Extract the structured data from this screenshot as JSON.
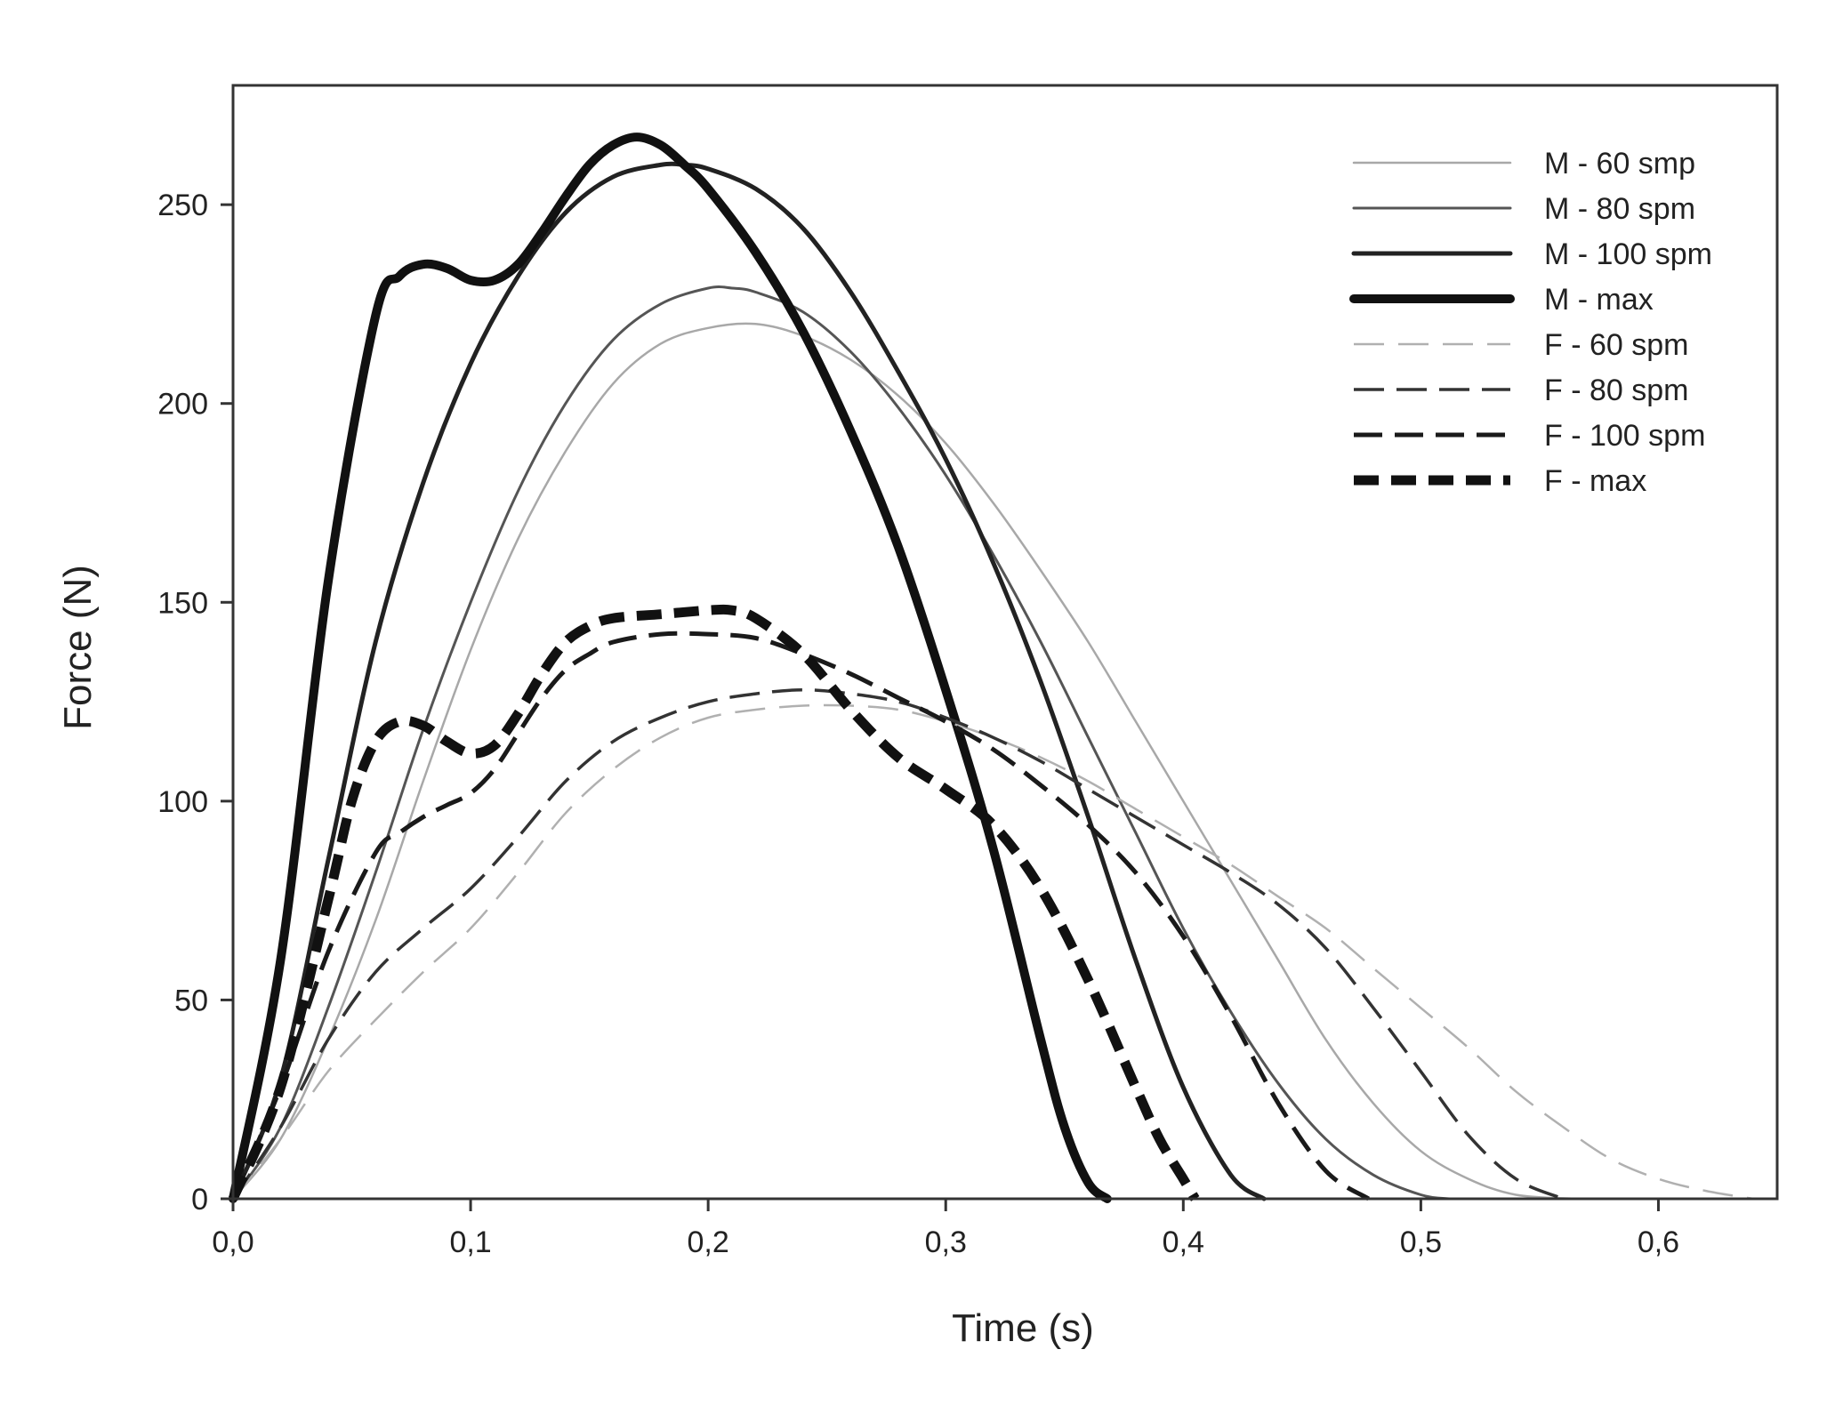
{
  "chart_data": {
    "type": "line",
    "title": "",
    "xlabel": "Time (s)",
    "ylabel": "Force (N)",
    "xlim": [
      0,
      0.65
    ],
    "ylim": [
      0,
      280
    ],
    "xticks": [
      0,
      0.1,
      0.2,
      0.3,
      0.4,
      0.5,
      0.6
    ],
    "xtick_labels": [
      "0,0",
      "0,1",
      "0,2",
      "0,3",
      "0,4",
      "0,5",
      "0,6"
    ],
    "yticks": [
      0,
      50,
      100,
      150,
      200,
      250
    ],
    "ytick_labels": [
      "0",
      "50",
      "100",
      "150",
      "200",
      "250"
    ],
    "grid": false,
    "legend_position": "top-right",
    "series": [
      {
        "name": "M - 60 smp",
        "color": "#a8a8a8",
        "style": "solid-thin",
        "x": [
          0,
          0.02,
          0.04,
          0.06,
          0.08,
          0.1,
          0.12,
          0.14,
          0.16,
          0.18,
          0.2,
          0.22,
          0.24,
          0.26,
          0.28,
          0.3,
          0.32,
          0.34,
          0.36,
          0.38,
          0.4,
          0.42,
          0.44,
          0.46,
          0.48,
          0.5,
          0.52,
          0.54,
          0.565
        ],
        "y": [
          0,
          15,
          40,
          70,
          105,
          138,
          166,
          188,
          205,
          215,
          219,
          220,
          217,
          211,
          202,
          190,
          175,
          158,
          140,
          120,
          100,
          80,
          60,
          40,
          24,
          12,
          5,
          1,
          0
        ]
      },
      {
        "name": "M - 80 spm",
        "color": "#555555",
        "style": "solid-medium",
        "x": [
          0,
          0.02,
          0.04,
          0.06,
          0.08,
          0.1,
          0.12,
          0.14,
          0.16,
          0.18,
          0.2,
          0.21,
          0.22,
          0.24,
          0.26,
          0.28,
          0.3,
          0.32,
          0.34,
          0.36,
          0.38,
          0.4,
          0.42,
          0.44,
          0.46,
          0.48,
          0.5,
          0.512
        ],
        "y": [
          0,
          18,
          48,
          82,
          118,
          150,
          178,
          200,
          216,
          225,
          229,
          229,
          228,
          223,
          213,
          199,
          182,
          162,
          140,
          116,
          92,
          68,
          47,
          29,
          15,
          6,
          1,
          0
        ]
      },
      {
        "name": "M - 100 spm",
        "color": "#222222",
        "style": "solid-thick",
        "x": [
          0,
          0.02,
          0.04,
          0.06,
          0.08,
          0.1,
          0.12,
          0.14,
          0.16,
          0.18,
          0.19,
          0.2,
          0.22,
          0.24,
          0.26,
          0.28,
          0.3,
          0.32,
          0.34,
          0.36,
          0.38,
          0.4,
          0.42,
          0.434
        ],
        "y": [
          0,
          30,
          85,
          140,
          180,
          210,
          232,
          248,
          257,
          260,
          260,
          259,
          254,
          244,
          228,
          208,
          186,
          160,
          130,
          96,
          60,
          28,
          6,
          0
        ]
      },
      {
        "name": "M - max",
        "color": "#111111",
        "style": "solid-heavy",
        "x": [
          0,
          0.02,
          0.04,
          0.06,
          0.07,
          0.08,
          0.09,
          0.1,
          0.11,
          0.12,
          0.13,
          0.14,
          0.15,
          0.16,
          0.17,
          0.18,
          0.19,
          0.2,
          0.22,
          0.24,
          0.26,
          0.28,
          0.3,
          0.32,
          0.34,
          0.35,
          0.36,
          0.368
        ],
        "y": [
          0,
          60,
          155,
          222,
          232,
          235,
          234,
          231,
          231,
          235,
          243,
          252,
          260,
          265,
          267,
          265,
          260,
          254,
          238,
          218,
          193,
          164,
          128,
          88,
          40,
          18,
          4,
          0
        ]
      },
      {
        "name": "F - 60 spm",
        "color": "#b0b0b0",
        "style": "dash-thin",
        "x": [
          0,
          0.02,
          0.04,
          0.06,
          0.08,
          0.1,
          0.12,
          0.14,
          0.16,
          0.18,
          0.2,
          0.22,
          0.24,
          0.26,
          0.28,
          0.3,
          0.32,
          0.34,
          0.36,
          0.38,
          0.4,
          0.42,
          0.44,
          0.46,
          0.48,
          0.5,
          0.52,
          0.54,
          0.56,
          0.58,
          0.6,
          0.62,
          0.64
        ],
        "y": [
          0,
          15,
          32,
          45,
          57,
          68,
          82,
          97,
          108,
          116,
          121,
          123,
          124,
          124,
          123,
          120,
          116,
          111,
          105,
          98,
          91,
          84,
          76,
          68,
          58,
          48,
          38,
          27,
          18,
          10,
          5,
          2,
          0
        ]
      },
      {
        "name": "F - 80 spm",
        "color": "#333333",
        "style": "dash-medium",
        "x": [
          0,
          0.02,
          0.04,
          0.06,
          0.08,
          0.1,
          0.12,
          0.14,
          0.16,
          0.18,
          0.2,
          0.22,
          0.24,
          0.26,
          0.28,
          0.3,
          0.32,
          0.34,
          0.36,
          0.38,
          0.4,
          0.42,
          0.44,
          0.46,
          0.48,
          0.5,
          0.52,
          0.54,
          0.56
        ],
        "y": [
          0,
          18,
          40,
          57,
          68,
          78,
          91,
          105,
          115,
          121,
          125,
          127,
          128,
          127,
          125,
          121,
          116,
          110,
          103,
          96,
          89,
          82,
          74,
          63,
          48,
          32,
          16,
          5,
          0
        ]
      },
      {
        "name": "F - 100 spm",
        "color": "#1a1a1a",
        "style": "dash-thick",
        "x": [
          0,
          0.02,
          0.04,
          0.06,
          0.07,
          0.08,
          0.09,
          0.1,
          0.11,
          0.12,
          0.13,
          0.14,
          0.15,
          0.16,
          0.18,
          0.2,
          0.22,
          0.24,
          0.26,
          0.28,
          0.3,
          0.32,
          0.34,
          0.36,
          0.38,
          0.4,
          0.42,
          0.44,
          0.46,
          0.478
        ],
        "y": [
          0,
          28,
          62,
          87,
          92,
          96,
          99,
          102,
          108,
          117,
          126,
          133,
          137,
          140,
          142,
          142,
          141,
          137,
          132,
          126,
          120,
          113,
          104,
          94,
          82,
          66,
          46,
          24,
          7,
          0
        ]
      },
      {
        "name": "F - max",
        "color": "#111111",
        "style": "dash-heavy",
        "x": [
          0,
          0.02,
          0.04,
          0.05,
          0.06,
          0.07,
          0.08,
          0.09,
          0.1,
          0.11,
          0.12,
          0.13,
          0.14,
          0.15,
          0.16,
          0.18,
          0.2,
          0.21,
          0.22,
          0.24,
          0.26,
          0.28,
          0.3,
          0.32,
          0.34,
          0.36,
          0.38,
          0.39,
          0.4,
          0.405
        ],
        "y": [
          0,
          28,
          75,
          100,
          115,
          120,
          119,
          115,
          112,
          114,
          122,
          132,
          140,
          144,
          146,
          147,
          148,
          148,
          146,
          137,
          123,
          111,
          103,
          94,
          78,
          55,
          28,
          15,
          5,
          0
        ]
      }
    ]
  }
}
